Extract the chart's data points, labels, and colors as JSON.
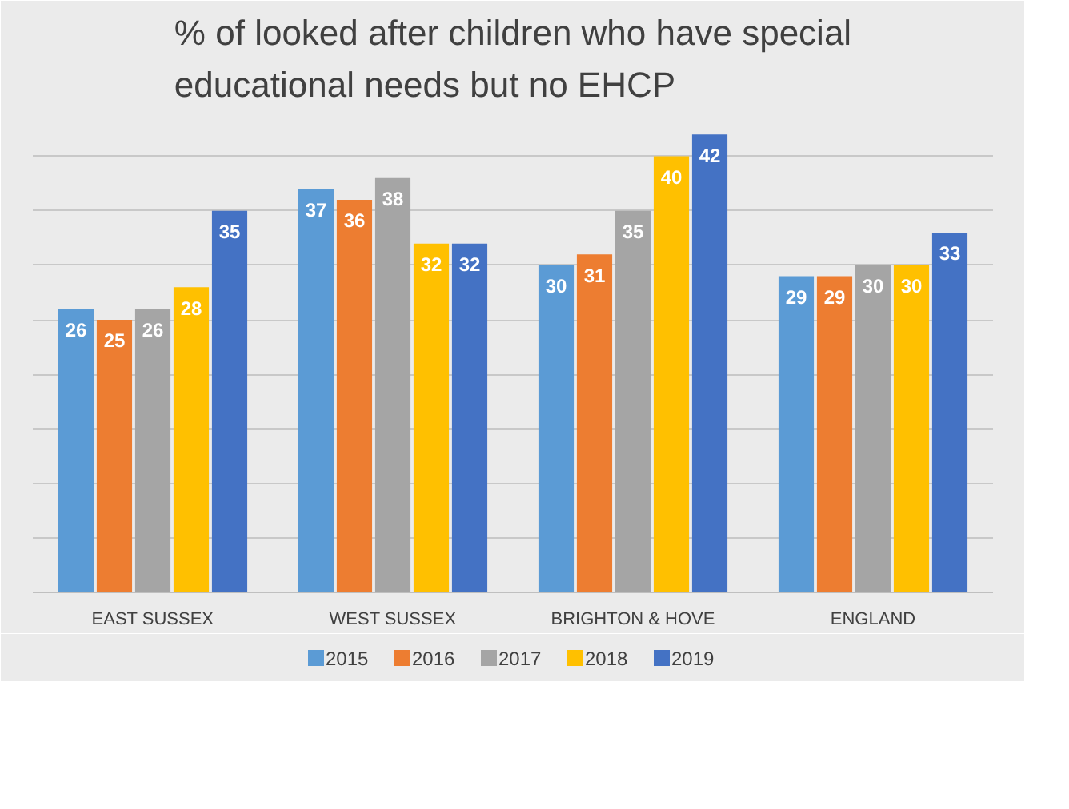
{
  "chart_data": {
    "type": "bar",
    "title": "% of looked after children who have special\neducational needs but no EHCP",
    "categories": [
      "EAST SUSSEX",
      "WEST SUSSEX",
      "BRIGHTON & HOVE",
      "ENGLAND"
    ],
    "series": [
      {
        "name": "2015",
        "color": "#5b9bd5",
        "values": [
          26,
          37,
          30,
          29
        ]
      },
      {
        "name": "2016",
        "color": "#ed7d31",
        "values": [
          25,
          36,
          31,
          29
        ]
      },
      {
        "name": "2017",
        "color": "#a5a5a5",
        "values": [
          26,
          38,
          35,
          30
        ]
      },
      {
        "name": "2018",
        "color": "#ffc000",
        "values": [
          28,
          32,
          40,
          30
        ]
      },
      {
        "name": "2019",
        "color": "#4472c4",
        "values": [
          35,
          32,
          42,
          33
        ]
      }
    ],
    "ylim": [
      0,
      44
    ],
    "yticks": [
      {
        "value": 0,
        "label": null
      },
      {
        "value": 5,
        "label": null
      },
      {
        "value": 10,
        "label": null
      },
      {
        "value": 15,
        "label": null
      },
      {
        "value": 20,
        "label": null
      },
      {
        "value": 25,
        "label": null
      },
      {
        "value": 30,
        "label": null
      },
      {
        "value": 35,
        "label": null
      },
      {
        "value": 40,
        "label": null
      }
    ],
    "tick_labels": "x",
    "grid": "y",
    "legend": "bottom",
    "data_labels": true
  }
}
